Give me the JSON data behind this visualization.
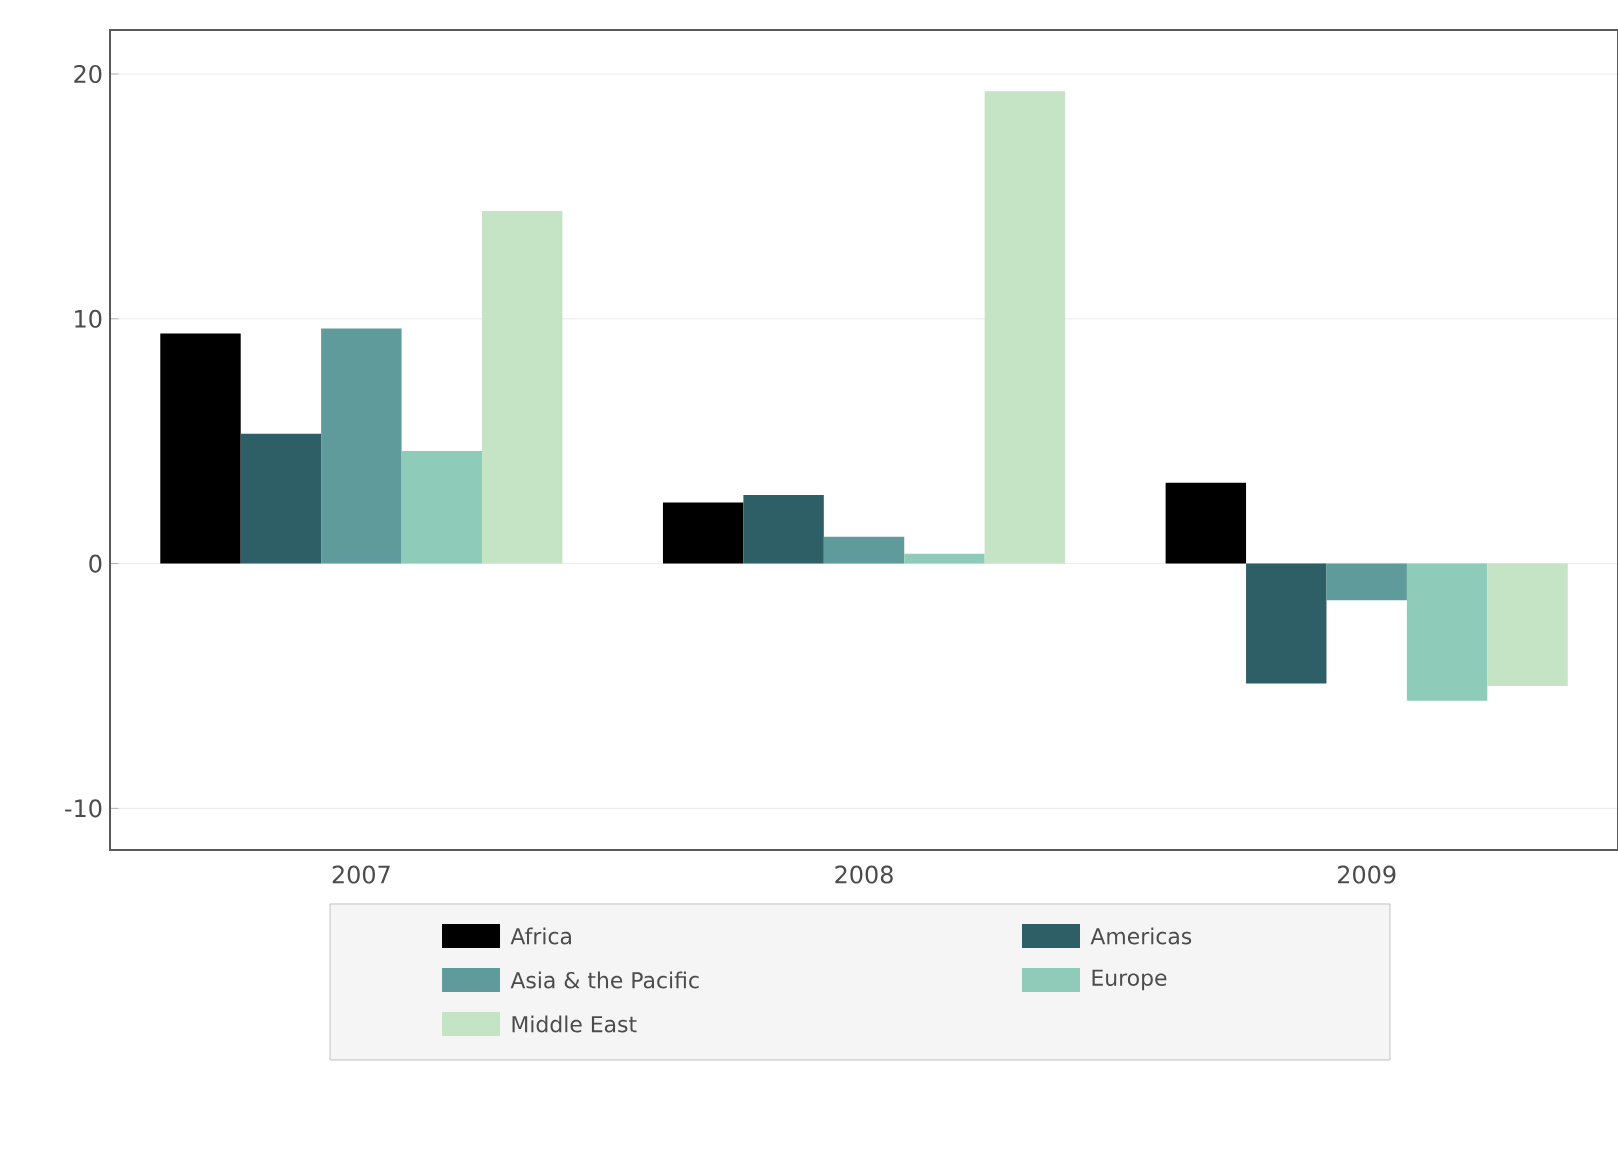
{
  "chart_data": {
    "type": "bar",
    "categories": [
      "2007",
      "2008",
      "2009"
    ],
    "series": [
      {
        "name": "Africa",
        "color": "#000000",
        "values": [
          9.4,
          2.5,
          3.3
        ]
      },
      {
        "name": "Americas",
        "color": "#2e5e66",
        "values": [
          5.3,
          2.8,
          -4.9
        ]
      },
      {
        "name": "Asia & the Pacific",
        "color": "#5e9b9a",
        "values": [
          9.6,
          1.1,
          -1.5
        ]
      },
      {
        "name": "Europe",
        "color": "#8fcbb9",
        "values": [
          4.6,
          0.4,
          -5.6
        ]
      },
      {
        "name": "Middle East",
        "color": "#c5e3c5",
        "values": [
          14.4,
          19.3,
          -5.0
        ]
      }
    ],
    "ylim": [
      -11.7,
      21.8
    ],
    "yticks": [
      -10,
      0,
      10,
      20
    ],
    "grid": "y",
    "legend": "bottom"
  }
}
